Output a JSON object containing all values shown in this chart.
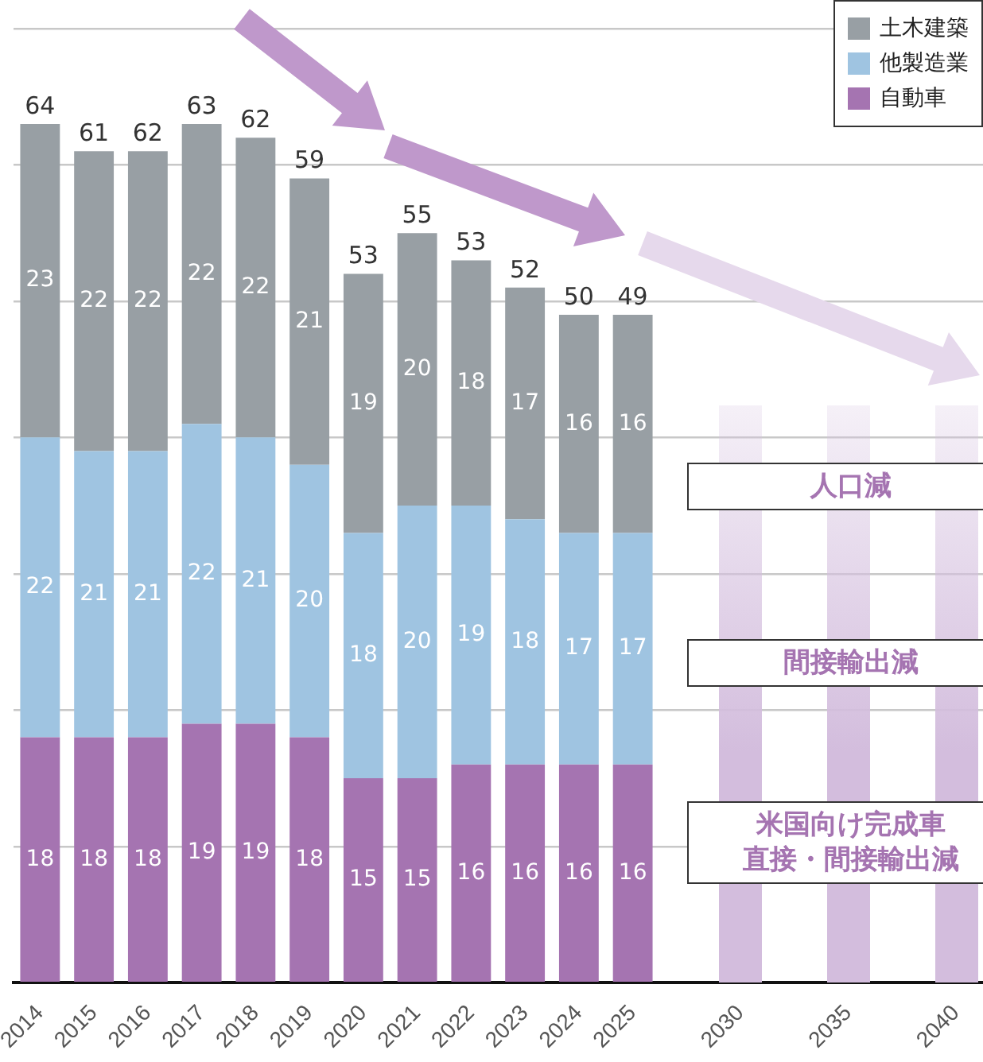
{
  "chart_data": {
    "type": "bar",
    "stacked": true,
    "categories": [
      "2014",
      "2015",
      "2016",
      "2017",
      "2018",
      "2019",
      "2020",
      "2021",
      "2022",
      "2023",
      "2024",
      "2025",
      null,
      "2030",
      null,
      "2035",
      null,
      "2040"
    ],
    "series": [
      {
        "name": "自動車",
        "color": "#a574b1",
        "values": [
          18,
          18,
          18,
          19,
          19,
          18,
          15,
          15,
          16,
          16,
          16,
          16,
          null,
          null,
          null,
          null,
          null,
          null
        ]
      },
      {
        "name": "他製造業",
        "color": "#9fc4e1",
        "values": [
          22,
          21,
          21,
          22,
          21,
          20,
          18,
          20,
          19,
          18,
          17,
          17,
          null,
          null,
          null,
          null,
          null,
          null
        ]
      },
      {
        "name": "土木建築",
        "color": "#989fa4",
        "values": [
          23,
          22,
          22,
          22,
          22,
          21,
          19,
          20,
          18,
          17,
          16,
          16,
          null,
          null,
          null,
          null,
          null,
          null
        ]
      }
    ],
    "totals": [
      "64",
      "61",
      "62",
      "63",
      "62",
      "59",
      "53",
      "55",
      "53",
      "52",
      "50",
      "49",
      null,
      null,
      null,
      null,
      null,
      null
    ],
    "data_labels": true,
    "ylim": [
      0,
      70
    ],
    "yticks": [
      {
        "value": 0,
        "label": null
      },
      {
        "value": 10,
        "label": null
      },
      {
        "value": 20,
        "label": null
      },
      {
        "value": 30,
        "label": null
      },
      {
        "value": 40,
        "label": null
      },
      {
        "value": 50,
        "label": null
      },
      {
        "value": 60,
        "label": null
      },
      {
        "value": 70,
        "label": null
      }
    ],
    "tick_labels": "x",
    "grid": "y",
    "legend": "top right",
    "annotations": [
      "人口減",
      "間接輸出減",
      "米国向け完成車",
      "直接・間接輸出減"
    ]
  }
}
